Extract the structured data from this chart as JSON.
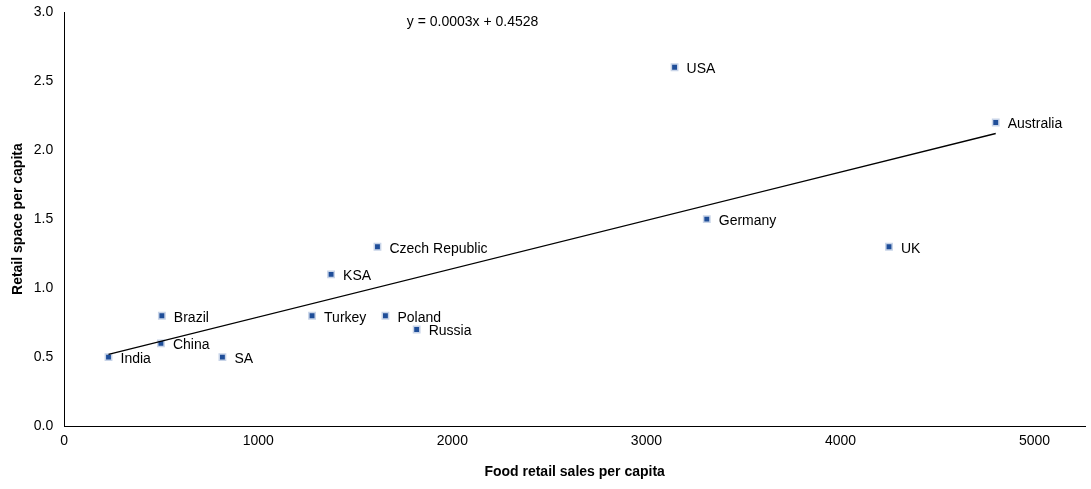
{
  "chart_data": {
    "type": "scatter",
    "xlabel": "Food retail sales per capita",
    "ylabel": "Retail space per capita",
    "xlim": [
      0,
      5260
    ],
    "ylim": [
      0,
      3
    ],
    "xticks": [
      0,
      1000,
      2000,
      3000,
      4000,
      5000
    ],
    "yticks": [
      {
        "value": 0,
        "label": "0.0"
      },
      {
        "value": 0.5,
        "label": "0.5"
      },
      {
        "value": 1,
        "label": "1.0"
      },
      {
        "value": 1.5,
        "label": "1.5"
      },
      {
        "value": 2,
        "label": "2.0"
      },
      {
        "value": 2.5,
        "label": "2.5"
      },
      {
        "value": 3,
        "label": "3.0"
      }
    ],
    "grid": false,
    "legend": false,
    "series": [
      {
        "marker": "square",
        "color": "#1f4e99",
        "x": [
          228,
          498,
          503,
          815,
          1277,
          1375,
          1614,
          1655,
          1816,
          3145,
          3311,
          4250,
          4800
        ],
        "values": [
          0.5,
          0.6,
          0.8,
          0.5,
          0.8,
          1.1,
          1.3,
          0.8,
          0.7,
          2.6,
          1.5,
          1.3,
          2.2
        ]
      },
      {
        "type": "line",
        "color": "#000000",
        "x": [
          228,
          4800
        ],
        "values": [
          0.52,
          2.12
        ]
      }
    ],
    "annotations": [
      "y = 0.0003x + 0.4528",
      {
        "text": "India",
        "x": 228,
        "y": 0.5
      },
      {
        "text": "China",
        "x": 498,
        "y": 0.6
      },
      {
        "text": "Brazil",
        "x": 503,
        "y": 0.8
      },
      {
        "text": "SA",
        "x": 815,
        "y": 0.5
      },
      {
        "text": "Turkey",
        "x": 1277,
        "y": 0.8
      },
      {
        "text": "KSA",
        "x": 1375,
        "y": 1.1
      },
      {
        "text": "Czech Republic",
        "x": 1614,
        "y": 1.3
      },
      {
        "text": "Poland",
        "x": 1655,
        "y": 0.8
      },
      {
        "text": "Russia",
        "x": 1816,
        "y": 0.7
      },
      {
        "text": "USA",
        "x": 3145,
        "y": 2.6
      },
      {
        "text": "Germany",
        "x": 3311,
        "y": 1.5
      },
      {
        "text": "UK",
        "x": 4250,
        "y": 1.3
      },
      {
        "text": "Australia",
        "x": 4800,
        "y": 2.2
      }
    ]
  }
}
